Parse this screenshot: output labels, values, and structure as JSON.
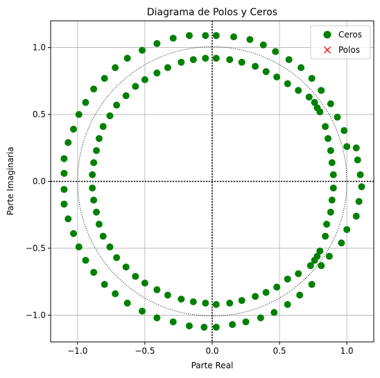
{
  "chart_data": {
    "type": "scatter",
    "title": "Diagrama de Polos y Ceros",
    "xlabel": "Parte Real",
    "ylabel": "Parte Imaginaria",
    "xlim": [
      -1.2,
      1.2
    ],
    "ylim": [
      -1.2,
      1.2
    ],
    "x_ticks": [
      -1.0,
      -0.5,
      0.0,
      0.5,
      1.0
    ],
    "y_ticks": [
      -1.0,
      -0.5,
      0.0,
      0.5,
      1.0
    ],
    "x_tick_labels": [
      "−1.0",
      "−0.5",
      "0.0",
      "0.5",
      "1.0"
    ],
    "y_tick_labels": [
      "−1.0",
      "−0.5",
      "0.0",
      "0.5",
      "1.0"
    ],
    "grid": true,
    "legend_position": "top-right",
    "unit_circle": {
      "radius": 1.0,
      "style": "dotted",
      "color": "#000000"
    },
    "axis_lines": {
      "x0": 0,
      "y0": 0,
      "style": "dotted",
      "color": "#000000"
    },
    "series": [
      {
        "name": "Ceros",
        "marker": "circle",
        "color": "#008000",
        "points": [
          [
            -0.05,
            1.09
          ],
          [
            0.03,
            1.09
          ],
          [
            -0.17,
            1.09
          ],
          [
            0.16,
            1.08
          ],
          [
            -0.29,
            1.07
          ],
          [
            0.28,
            1.06
          ],
          [
            -0.41,
            1.03
          ],
          [
            0.38,
            1.02
          ],
          [
            -0.52,
            0.98
          ],
          [
            0.47,
            0.97
          ],
          [
            -0.63,
            0.92
          ],
          [
            0.57,
            0.91
          ],
          [
            -0.72,
            0.85
          ],
          [
            0.66,
            0.85
          ],
          [
            -0.8,
            0.77
          ],
          [
            0.74,
            0.77
          ],
          [
            -0.88,
            0.69
          ],
          [
            0.81,
            0.68
          ],
          [
            -0.94,
            0.59
          ],
          [
            0.88,
            0.58
          ],
          [
            -0.99,
            0.5
          ],
          [
            0.93,
            0.48
          ],
          [
            -1.03,
            0.39
          ],
          [
            0.98,
            0.38
          ],
          [
            -1.07,
            0.29
          ],
          [
            1.0,
            0.26
          ],
          [
            -1.1,
            0.17
          ],
          [
            1.07,
            0.25
          ],
          [
            -1.1,
            0.06
          ],
          [
            1.08,
            0.16
          ],
          [
            -1.1,
            -0.06
          ],
          [
            1.1,
            0.05
          ],
          [
            -1.1,
            -0.17
          ],
          [
            1.11,
            -0.04
          ],
          [
            -1.07,
            -0.28
          ],
          [
            1.09,
            -0.15
          ],
          [
            -1.03,
            -0.39
          ],
          [
            1.07,
            -0.26
          ],
          [
            -0.99,
            -0.49
          ],
          [
            1.0,
            -0.36
          ],
          [
            -0.94,
            -0.59
          ],
          [
            0.96,
            -0.46
          ],
          [
            -0.88,
            -0.68
          ],
          [
            0.87,
            -0.56
          ],
          [
            -0.8,
            -0.77
          ],
          [
            0.81,
            -0.63
          ],
          [
            -0.72,
            -0.84
          ],
          [
            0.74,
            -0.77
          ],
          [
            -0.63,
            -0.91
          ],
          [
            0.65,
            -0.85
          ],
          [
            -0.52,
            -0.97
          ],
          [
            0.56,
            -0.92
          ],
          [
            -0.41,
            -1.02
          ],
          [
            0.46,
            -0.98
          ],
          [
            -0.29,
            -1.05
          ],
          [
            0.36,
            -1.02
          ],
          [
            -0.17,
            -1.08
          ],
          [
            0.25,
            -1.05
          ],
          [
            -0.06,
            -1.09
          ],
          [
            0.15,
            -1.07
          ],
          [
            0.03,
            -1.09
          ],
          [
            -0.05,
            0.92
          ],
          [
            0.03,
            0.92
          ],
          [
            -0.14,
            0.91
          ],
          [
            0.13,
            0.91
          ],
          [
            -0.23,
            0.89
          ],
          [
            0.22,
            0.89
          ],
          [
            -0.33,
            0.85
          ],
          [
            0.32,
            0.86
          ],
          [
            -0.41,
            0.81
          ],
          [
            0.4,
            0.82
          ],
          [
            -0.5,
            0.76
          ],
          [
            0.48,
            0.78
          ],
          [
            -0.57,
            0.71
          ],
          [
            0.56,
            0.73
          ],
          [
            -0.64,
            0.64
          ],
          [
            0.64,
            0.68
          ],
          [
            -0.71,
            0.57
          ],
          [
            0.72,
            0.63
          ],
          [
            -0.76,
            0.49
          ],
          [
            0.76,
            0.59
          ],
          [
            -0.81,
            0.41
          ],
          [
            0.78,
            0.55
          ],
          [
            -0.84,
            0.32
          ],
          [
            0.8,
            0.52
          ],
          [
            -0.86,
            0.23
          ],
          [
            0.84,
            0.41
          ],
          [
            -0.88,
            0.14
          ],
          [
            0.86,
            0.32
          ],
          [
            -0.89,
            0.05
          ],
          [
            0.88,
            0.23
          ],
          [
            -0.89,
            -0.05
          ],
          [
            0.89,
            0.14
          ],
          [
            -0.88,
            -0.14
          ],
          [
            0.9,
            0.05
          ],
          [
            -0.86,
            -0.23
          ],
          [
            0.9,
            -0.05
          ],
          [
            -0.84,
            -0.32
          ],
          [
            0.89,
            -0.14
          ],
          [
            -0.81,
            -0.41
          ],
          [
            0.88,
            -0.23
          ],
          [
            -0.76,
            -0.49
          ],
          [
            0.85,
            -0.32
          ],
          [
            -0.71,
            -0.57
          ],
          [
            0.84,
            -0.41
          ],
          [
            -0.64,
            -0.64
          ],
          [
            0.8,
            -0.52
          ],
          [
            -0.57,
            -0.71
          ],
          [
            0.78,
            -0.56
          ],
          [
            -0.5,
            -0.76
          ],
          [
            0.76,
            -0.59
          ],
          [
            -0.41,
            -0.81
          ],
          [
            0.73,
            -0.63
          ],
          [
            -0.33,
            -0.85
          ],
          [
            0.64,
            -0.69
          ],
          [
            -0.23,
            -0.88
          ],
          [
            0.56,
            -0.73
          ],
          [
            -0.14,
            -0.9
          ],
          [
            0.48,
            -0.79
          ],
          [
            -0.05,
            -0.91
          ],
          [
            0.4,
            -0.83
          ],
          [
            0.03,
            -0.92
          ],
          [
            0.32,
            -0.86
          ],
          [
            0.22,
            -0.89
          ],
          [
            0.13,
            -0.91
          ]
        ]
      },
      {
        "name": "Polos",
        "marker": "x",
        "color": "#ff0000",
        "points": []
      }
    ]
  }
}
